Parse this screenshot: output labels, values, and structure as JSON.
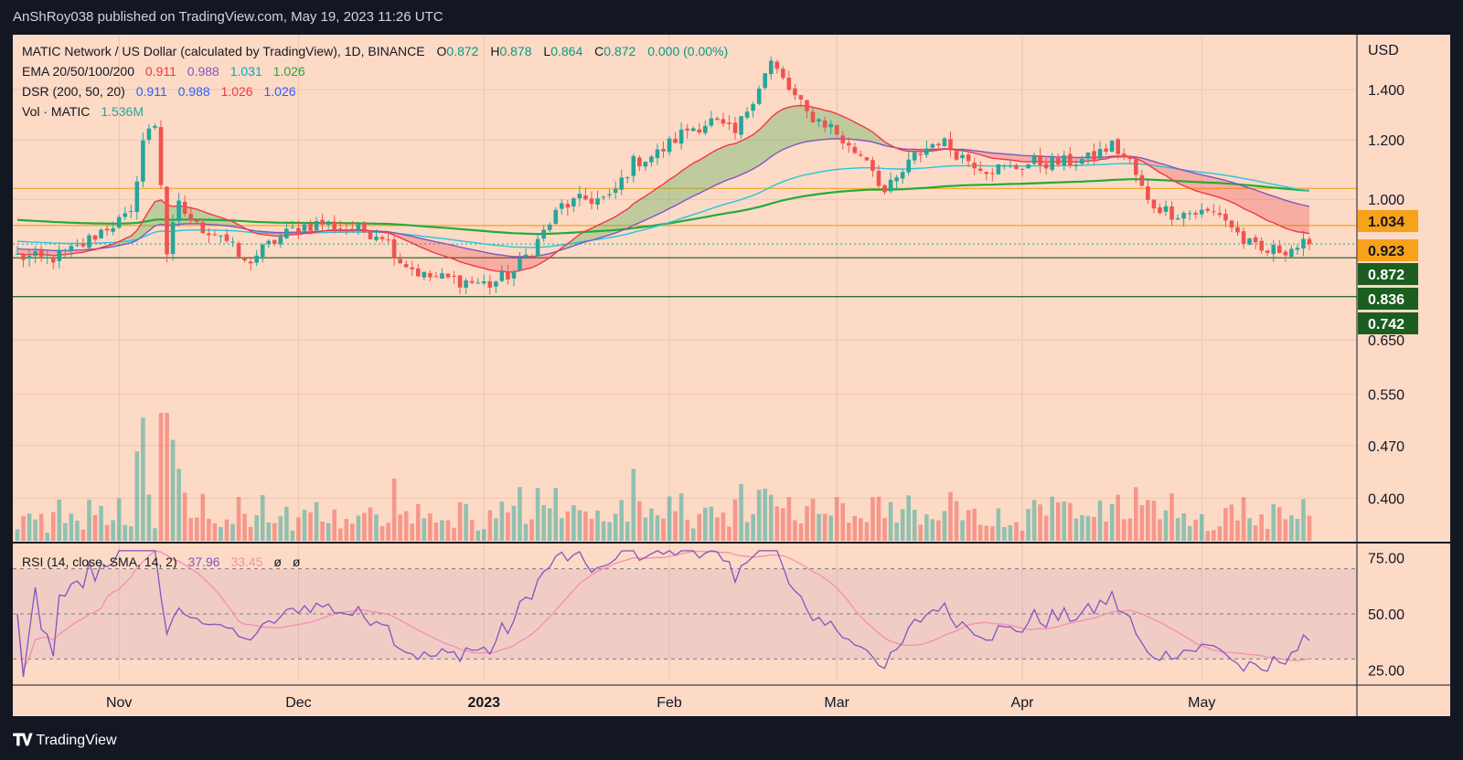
{
  "header": {
    "publisher_line": "AnShRoy038 published on TradingView.com, May 19, 2023 11:26 UTC"
  },
  "footer": {
    "brand": "TradingView",
    "logo_icon": "tradingview-logo-icon"
  },
  "legend": {
    "symbol": "MATIC Network / US Dollar (calculated by TradingView), 1D, BINANCE",
    "ohlc": [
      {
        "label": "O",
        "value": "0.872"
      },
      {
        "label": "H",
        "value": "0.878"
      },
      {
        "label": "L",
        "value": "0.864"
      },
      {
        "label": "C",
        "value": "0.872"
      }
    ],
    "change": "0.000 (0.00%)",
    "ema": {
      "label": "EMA 20/50/100/200",
      "values": [
        "0.911",
        "0.988",
        "1.031",
        "1.026"
      ]
    },
    "dsr": {
      "label": "DSR (200, 50, 20)",
      "values": [
        "0.911",
        "0.988",
        "1.026",
        "1.026"
      ]
    },
    "vol": {
      "label": "Vol · MATIC",
      "value": "1.536M"
    },
    "rsi": {
      "label": "RSI (14, close, SMA, 14, 2)",
      "values": [
        "37.96",
        "33.45",
        "ø",
        "ø"
      ]
    }
  },
  "colors": {
    "frame_bg": "#fddac6",
    "dark_bg": "#131722",
    "up": "#26a69a",
    "down": "#ef5350",
    "ema20": "#f23645",
    "ema50": "#7e57c2",
    "ema100": "#26c6da",
    "ema200": "#22ab3c",
    "rsi": "#7e57c2",
    "rsi_ma": "#f48fb1",
    "label_orange": "#f7a21b",
    "label_green": "#1b5e20"
  },
  "chart_data": {
    "type": "candlestick",
    "interval": "1D",
    "exchange": "BINANCE",
    "currency": "USD",
    "y_scale": "log",
    "ylim": [
      0.355,
      1.62
    ],
    "x_start": "2022-10-15",
    "x_end": "2023-05-19",
    "y_ticks": [
      "1.400",
      "1.200",
      "1.000",
      "0.650",
      "0.550",
      "0.470",
      "0.400"
    ],
    "x_ticks": [
      {
        "label": "Nov",
        "date": "2022-11-01"
      },
      {
        "label": "Dec",
        "date": "2022-12-01"
      },
      {
        "label": "2023",
        "date": "2023-01-01"
      },
      {
        "label": "Feb",
        "date": "2023-02-01"
      },
      {
        "label": "Mar",
        "date": "2023-03-01"
      },
      {
        "label": "Apr",
        "date": "2023-04-01"
      },
      {
        "label": "May",
        "date": "2023-05-01"
      }
    ],
    "price_labels": [
      {
        "value": "1.034",
        "kind": "line"
      },
      {
        "value": "0.923",
        "kind": "line"
      },
      {
        "value": "0.872",
        "kind": "last"
      },
      {
        "value": "0.836",
        "kind": "line"
      },
      {
        "value": "0.742",
        "kind": "line"
      }
    ],
    "horizontal_lines": [
      1.034,
      0.923,
      0.836,
      0.742
    ],
    "close_anchors": [
      [
        "2022-10-15",
        0.84
      ],
      [
        "2022-10-20",
        0.83
      ],
      [
        "2022-10-25",
        0.86
      ],
      [
        "2022-10-30",
        0.92
      ],
      [
        "2022-11-03",
        0.95
      ],
      [
        "2022-11-05",
        1.2
      ],
      [
        "2022-11-07",
        1.26
      ],
      [
        "2022-11-09",
        0.85
      ],
      [
        "2022-11-11",
        0.98
      ],
      [
        "2022-11-14",
        0.92
      ],
      [
        "2022-11-18",
        0.9
      ],
      [
        "2022-11-22",
        0.82
      ],
      [
        "2022-11-27",
        0.88
      ],
      [
        "2022-12-01",
        0.92
      ],
      [
        "2022-12-05",
        0.93
      ],
      [
        "2022-12-10",
        0.91
      ],
      [
        "2022-12-15",
        0.9
      ],
      [
        "2022-12-18",
        0.83
      ],
      [
        "2022-12-22",
        0.79
      ],
      [
        "2022-12-28",
        0.78
      ],
      [
        "2023-01-02",
        0.77
      ],
      [
        "2023-01-06",
        0.8
      ],
      [
        "2023-01-10",
        0.88
      ],
      [
        "2023-01-14",
        0.98
      ],
      [
        "2023-01-18",
        1.0
      ],
      [
        "2023-01-22",
        1.0
      ],
      [
        "2023-01-26",
        1.12
      ],
      [
        "2023-01-30",
        1.15
      ],
      [
        "2023-02-04",
        1.24
      ],
      [
        "2023-02-08",
        1.27
      ],
      [
        "2023-02-12",
        1.22
      ],
      [
        "2023-02-16",
        1.42
      ],
      [
        "2023-02-18",
        1.52
      ],
      [
        "2023-02-21",
        1.4
      ],
      [
        "2023-02-24",
        1.3
      ],
      [
        "2023-02-28",
        1.25
      ],
      [
        "2023-03-03",
        1.17
      ],
      [
        "2023-03-06",
        1.14
      ],
      [
        "2023-03-09",
        1.02
      ],
      [
        "2023-03-11",
        1.06
      ],
      [
        "2023-03-14",
        1.14
      ],
      [
        "2023-03-18",
        1.2
      ],
      [
        "2023-03-22",
        1.14
      ],
      [
        "2023-03-26",
        1.1
      ],
      [
        "2023-03-30",
        1.1
      ],
      [
        "2023-04-03",
        1.12
      ],
      [
        "2023-04-08",
        1.12
      ],
      [
        "2023-04-12",
        1.13
      ],
      [
        "2023-04-16",
        1.18
      ],
      [
        "2023-04-19",
        1.12
      ],
      [
        "2023-04-22",
        0.99
      ],
      [
        "2023-04-26",
        0.96
      ],
      [
        "2023-04-30",
        0.96
      ],
      [
        "2023-05-04",
        0.96
      ],
      [
        "2023-05-08",
        0.88
      ],
      [
        "2023-05-11",
        0.85
      ],
      [
        "2023-05-15",
        0.86
      ],
      [
        "2023-05-19",
        0.872
      ]
    ],
    "rsi_ticks": [
      "75.00",
      "50.00",
      "25.00"
    ],
    "rsi_levels": [
      70,
      50,
      30
    ],
    "rsi_ylim": [
      20,
      80
    ]
  }
}
